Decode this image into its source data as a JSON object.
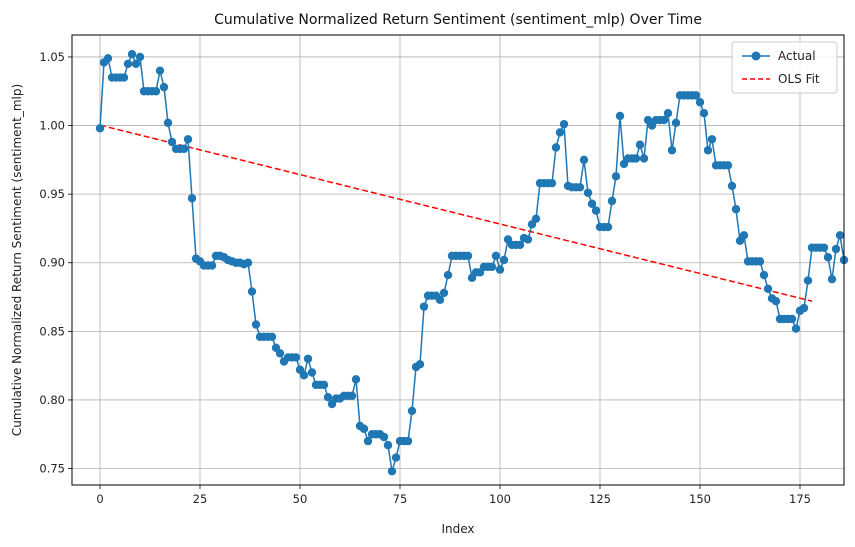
{
  "chart_data": {
    "type": "line",
    "title": "Cumulative Normalized Return Sentiment (sentiment_mlp) Over Time",
    "xlabel": "Index",
    "ylabel": "Cumulative Normalized Return Sentiment (sentiment_mlp)",
    "xlim": [
      -7,
      186
    ],
    "ylim": [
      0.738,
      1.066
    ],
    "xticks": [
      0,
      25,
      50,
      75,
      100,
      125,
      150,
      175
    ],
    "xtick_labels": [
      "0",
      "25",
      "50",
      "75",
      "100",
      "125",
      "150",
      "175"
    ],
    "yticks": [
      0.75,
      0.8,
      0.85,
      0.9,
      0.95,
      1.0,
      1.05
    ],
    "ytick_labels": [
      "0.75",
      "0.80",
      "0.85",
      "0.90",
      "0.95",
      "1.00",
      "1.05"
    ],
    "grid": true,
    "legend_position": "top-right",
    "series": [
      {
        "name": "Actual",
        "color": "#1f77b4",
        "style": "solid-with-markers",
        "values": [
          0.998,
          1.046,
          1.049,
          1.035,
          1.035,
          1.035,
          1.035,
          1.045,
          1.052,
          1.045,
          1.05,
          1.025,
          1.025,
          1.025,
          1.025,
          1.04,
          1.028,
          1.002,
          0.988,
          0.983,
          0.983,
          0.983,
          0.99,
          0.947,
          0.903,
          0.901,
          0.898,
          0.898,
          0.898,
          0.905,
          0.905,
          0.904,
          0.902,
          0.901,
          0.9,
          0.9,
          0.899,
          0.9,
          0.879,
          0.855,
          0.846,
          0.846,
          0.846,
          0.846,
          0.838,
          0.834,
          0.828,
          0.831,
          0.831,
          0.831,
          0.822,
          0.818,
          0.83,
          0.82,
          0.811,
          0.811,
          0.811,
          0.802,
          0.797,
          0.801,
          0.801,
          0.803,
          0.803,
          0.803,
          0.815,
          0.781,
          0.779,
          0.77,
          0.775,
          0.775,
          0.775,
          0.773,
          0.767,
          0.748,
          0.758,
          0.77,
          0.77,
          0.77,
          0.792,
          0.824,
          0.826,
          0.868,
          0.876,
          0.876,
          0.876,
          0.873,
          0.878,
          0.891,
          0.905,
          0.905,
          0.905,
          0.905,
          0.905,
          0.889,
          0.893,
          0.893,
          0.897,
          0.897,
          0.897,
          0.905,
          0.895,
          0.902,
          0.917,
          0.913,
          0.913,
          0.913,
          0.918,
          0.917,
          0.928,
          0.932,
          0.958,
          0.958,
          0.958,
          0.958,
          0.984,
          0.995,
          1.001,
          0.956,
          0.955,
          0.955,
          0.955,
          0.975,
          0.951,
          0.943,
          0.938,
          0.926,
          0.926,
          0.926,
          0.945,
          0.963,
          1.007,
          0.972,
          0.976,
          0.976,
          0.976,
          0.986,
          0.976,
          1.004,
          1.0,
          1.004,
          1.004,
          1.004,
          1.009,
          0.982,
          1.002,
          1.022,
          1.022,
          1.022,
          1.022,
          1.022,
          1.017,
          1.009,
          0.982,
          0.99,
          0.971,
          0.971,
          0.971,
          0.971,
          0.956,
          0.939,
          0.916,
          0.92,
          0.901,
          0.901,
          0.901,
          0.901,
          0.891,
          0.881,
          0.874,
          0.872,
          0.859,
          0.859,
          0.859,
          0.859,
          0.852,
          0.865,
          0.867,
          0.887,
          0.911,
          0.911,
          0.911,
          0.911,
          0.904,
          0.888,
          0.91,
          0.92,
          0.902
        ]
      },
      {
        "name": "OLS Fit",
        "color": "#ff0000",
        "style": "dashed",
        "x": [
          0,
          178
        ],
        "values": [
          1.0003,
          0.872
        ]
      }
    ]
  }
}
